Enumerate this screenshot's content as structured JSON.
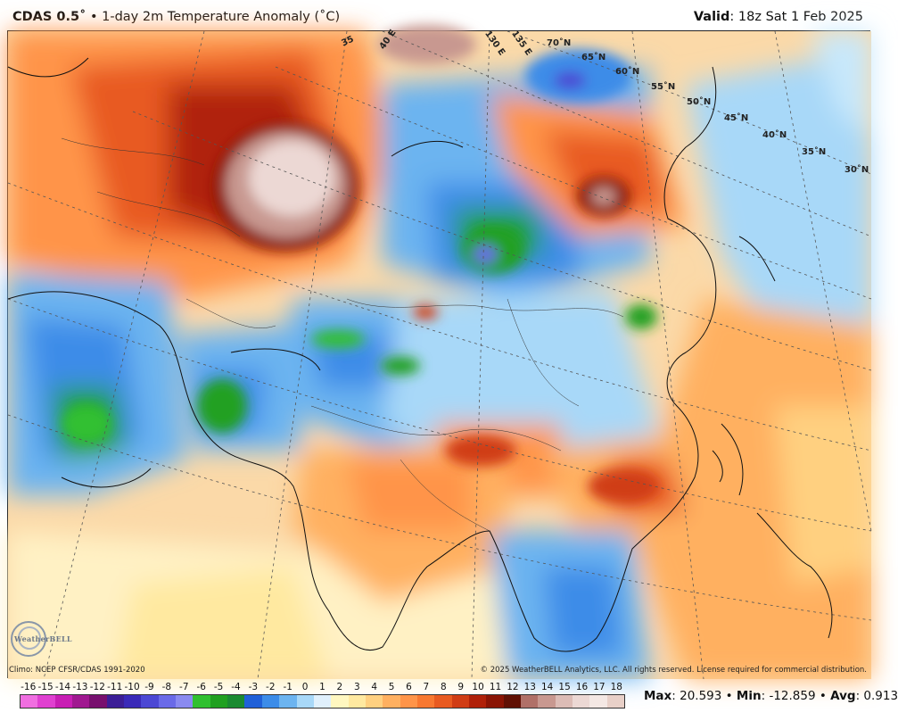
{
  "header": {
    "model": "CDAS 0.5˚",
    "separator": "•",
    "title": "1-day 2m Temperature Anomaly (˚C)",
    "valid_label": "Valid",
    "valid_value": ": 18z Sat 1 Feb 2025"
  },
  "map": {
    "latitude_labels": [
      "70˚N",
      "65˚N",
      "60˚N",
      "55˚N",
      "50˚N",
      "45˚N",
      "40˚N",
      "35˚N",
      "30˚N"
    ],
    "longitude_labels": [
      "35",
      "40 E",
      "130 E",
      "135 E"
    ],
    "colors": {
      "land_outline": "#111111",
      "graticule": "#555555"
    }
  },
  "footer": {
    "climo": "Climo: NCEP CFSR/CDAS 1991-2020",
    "copyright": "© 2025 WeatherBELL Analytics, LLC. All rights reserved. License required for commercial distribution.",
    "logo_text": "WeatherBELL"
  },
  "legend": {
    "ticks": [
      "-16",
      "-15",
      "-14",
      "-13",
      "-12",
      "-11",
      "-10",
      "-9",
      "-8",
      "-7",
      "-6",
      "-5",
      "-4",
      "-3",
      "-2",
      "-1",
      "0",
      "1",
      "2",
      "3",
      "4",
      "5",
      "6",
      "7",
      "8",
      "9",
      "10",
      "11",
      "12",
      "13",
      "14",
      "15",
      "16",
      "17",
      "18"
    ],
    "colors": [
      "#f06ee0",
      "#e040d0",
      "#c81eb4",
      "#a01890",
      "#78106e",
      "#3c1e96",
      "#3a2ab8",
      "#4c48d4",
      "#6a6ae8",
      "#8a8af0",
      "#30c030",
      "#20a020",
      "#1a8a30",
      "#2060d8",
      "#3c8ce8",
      "#6cb4f0",
      "#a8d8f8",
      "#e0f0fc",
      "#fff7c0",
      "#ffe9a0",
      "#ffd080",
      "#ffb060",
      "#ff9448",
      "#f87830",
      "#e85a20",
      "#d03c14",
      "#b02008",
      "#8a1404",
      "#601004",
      "#b07068",
      "#c89890",
      "#dcbcb6",
      "#ecd8d4",
      "#f4e8e4",
      "#e8d0c8"
    ]
  },
  "stats": {
    "max_label": "Max",
    "max_value": "20.593",
    "min_label": "Min",
    "min_value": "-12.859",
    "avg_label": "Avg",
    "avg_value": "0.913",
    "bullet": "•"
  }
}
